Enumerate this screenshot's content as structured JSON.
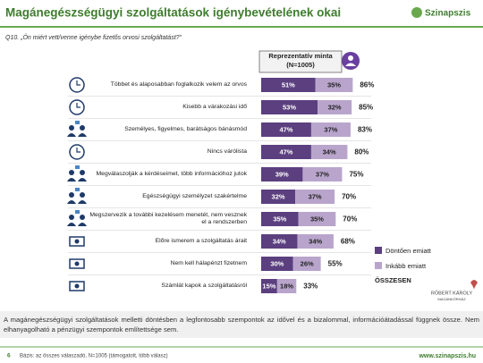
{
  "header": {
    "title": "Magánegészségügyi szolgáltatások igénybevételének okai",
    "logo": "Szinapszis",
    "question": "Q10. „Ön miért vett/venne igénybe fizetős orvosi szolgáltatást?\"",
    "sample_box": "Reprezentatív minta (N=1005)"
  },
  "chart_data": {
    "type": "stacked-bar-horizontal",
    "categories": [
      "Többet és alaposabban foglalkozik velem az orvos",
      "Kisebb a várakozási idő",
      "Személyes, figyelmes, barátságos bánásmód",
      "Nincs várólista",
      "Megválaszolják a kérdéseimet, több információhoz jutok",
      "Egészségügyi személyzet szakértelme",
      "Megszervezik a további kezelésem menetét, nem vesznek el a rendszerben",
      "Előre ismerem a szolgáltatás árait",
      "Nem kell hálapénzt fizetnem",
      "Számlát kapok a szolgáltatásról"
    ],
    "series": [
      {
        "name": "Döntően emiatt",
        "color": "#5b3f7f",
        "values": [
          51,
          53,
          47,
          47,
          39,
          32,
          35,
          34,
          30,
          15
        ],
        "value_labels": [
          "51%",
          "53%",
          "47%",
          "47%",
          "39%",
          "32%",
          "35%",
          "34%",
          "30%",
          "15%"
        ]
      },
      {
        "name": "Inkább emiatt",
        "color": "#b9a5cc",
        "values": [
          35,
          32,
          37,
          34,
          37,
          37,
          35,
          34,
          26,
          18
        ],
        "value_labels": [
          "35%",
          "32%",
          "37%",
          "34%",
          "37%",
          "37%",
          "35%",
          "34%",
          "26%",
          "18%"
        ]
      }
    ],
    "totals_name": "ÖSSZESEN",
    "totals": [
      86,
      85,
      83,
      80,
      75,
      70,
      70,
      68,
      55,
      33
    ],
    "total_labels": [
      "86%",
      "85%",
      "83%",
      "80%",
      "75%",
      "70%",
      "70%",
      "68%",
      "55%",
      "33%"
    ],
    "xlim": [
      0,
      100
    ]
  },
  "footer": {
    "summary": "A magánegészségügyi szolgáltatások melletti döntésben a legfontosabb szempontok az idővel és a bizalommal, információátadással függnek össze. Nem elhanyagolható a pénzügyi szempontok említettsége sem.",
    "page": "6",
    "base": "Bázis: az összes válaszadó, N=1005 (támogatott, több válasz)",
    "url": "www.szinapszis.hu",
    "partner": "RÓBERT KÁROLY",
    "partner_sub": "MAGÁNKÓRHÁZ"
  }
}
